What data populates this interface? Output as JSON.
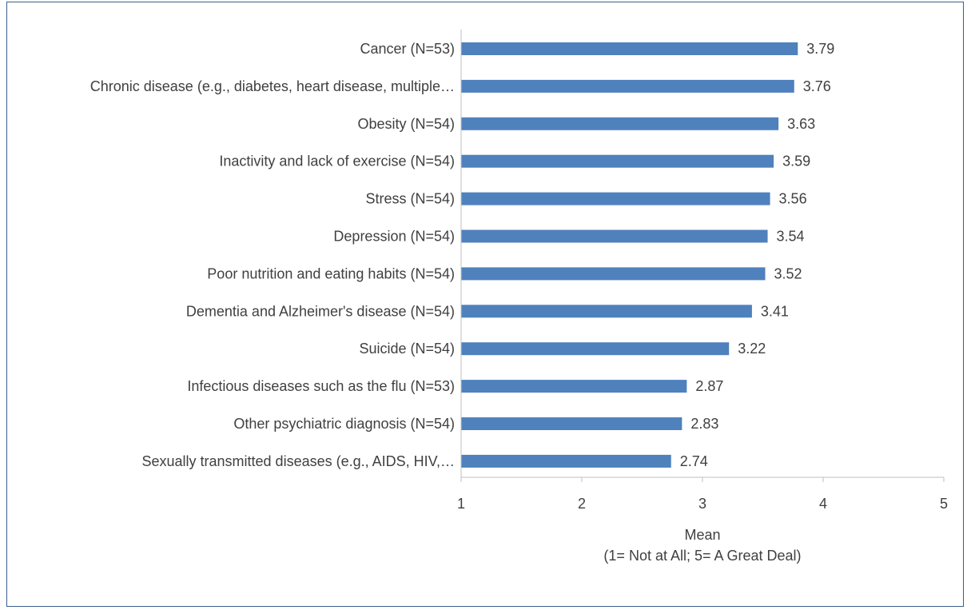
{
  "chart_data": {
    "type": "bar",
    "orientation": "horizontal",
    "categories": [
      "Cancer (N=53)",
      "Chronic disease (e.g., diabetes, heart disease, multiple…",
      "Obesity (N=54)",
      "Inactivity and lack of exercise (N=54)",
      "Stress (N=54)",
      "Depression (N=54)",
      "Poor nutrition and eating habits (N=54)",
      "Dementia and Alzheimer's disease (N=54)",
      "Suicide (N=54)",
      "Infectious diseases such as the flu (N=53)",
      "Other psychiatric diagnosis (N=54)",
      "Sexually transmitted diseases (e.g., AIDS, HIV,…"
    ],
    "values": [
      3.79,
      3.76,
      3.63,
      3.59,
      3.56,
      3.54,
      3.52,
      3.41,
      3.22,
      2.87,
      2.83,
      2.74
    ],
    "value_labels": [
      "3.79",
      "3.76",
      "3.63",
      "3.59",
      "3.56",
      "3.54",
      "3.52",
      "3.41",
      "3.22",
      "2.87",
      "2.83",
      "2.74"
    ],
    "title": "",
    "xlabel": "Mean",
    "xlabel_sub": "(1= Not at All; 5= A Great Deal)",
    "ylabel": "",
    "xlim": [
      1,
      5
    ],
    "xticks": [
      1,
      2,
      3,
      4,
      5
    ],
    "xtick_labels": [
      "1",
      "2",
      "3",
      "4",
      "5"
    ],
    "grid": false,
    "legend": "none",
    "bar_color": "#4f81bd",
    "axis_color": "#bfbfbf",
    "text_color": "#404040",
    "frame_color": "#3b5f8a"
  }
}
